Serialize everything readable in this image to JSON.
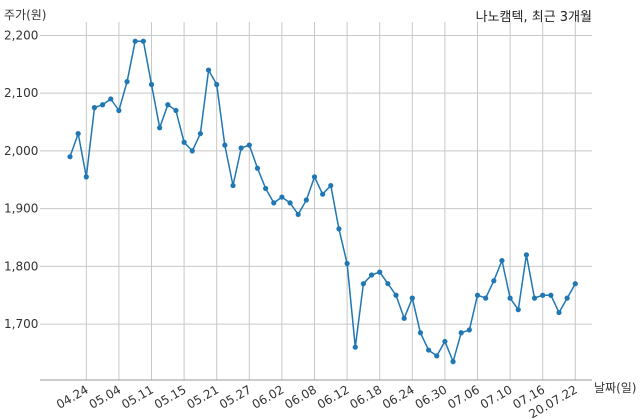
{
  "chart_data": {
    "type": "line",
    "title": "나노캠텍, 최근 3개월",
    "ylabel": "주가(원)",
    "xlabel": "날짜(일)",
    "ylim": [
      1600,
      2200
    ],
    "y_ticks": [
      "2,200",
      "2,100",
      "2,000",
      "1,900",
      "1,800",
      "1,700"
    ],
    "y_tick_values": [
      2200,
      2100,
      2000,
      1900,
      1800,
      1700
    ],
    "x_tick_labels": [
      "04.24",
      "05.04",
      "05.11",
      "05.15",
      "05.21",
      "05.27",
      "06.02",
      "06.08",
      "06.12",
      "06.18",
      "06.24",
      "06.30",
      "07.06",
      "07.10",
      "07.16",
      "20.07.22"
    ],
    "x_tick_indices": [
      2,
      6,
      10,
      14,
      18,
      22,
      26,
      30,
      34,
      38,
      42,
      46,
      50,
      54,
      58,
      62
    ],
    "grid": true,
    "series": [
      {
        "color": "#1f77b4",
        "values": [
          1990,
          2030,
          1955,
          2075,
          2080,
          2090,
          2070,
          2120,
          2190,
          2190,
          2115,
          2040,
          2080,
          2070,
          2015,
          2000,
          2030,
          2140,
          2115,
          2010,
          1940,
          2005,
          2010,
          1970,
          1935,
          1910,
          1920,
          1910,
          1890,
          1915,
          1955,
          1925,
          1940,
          1865,
          1805,
          1660,
          1770,
          1785,
          1790,
          1770,
          1750,
          1710,
          1745,
          1685,
          1655,
          1645,
          1670,
          1635,
          1685,
          1690,
          1750,
          1745,
          1775,
          1810,
          1745,
          1725,
          1820,
          1745,
          1750,
          1750,
          1720,
          1745,
          1770
        ]
      }
    ]
  }
}
